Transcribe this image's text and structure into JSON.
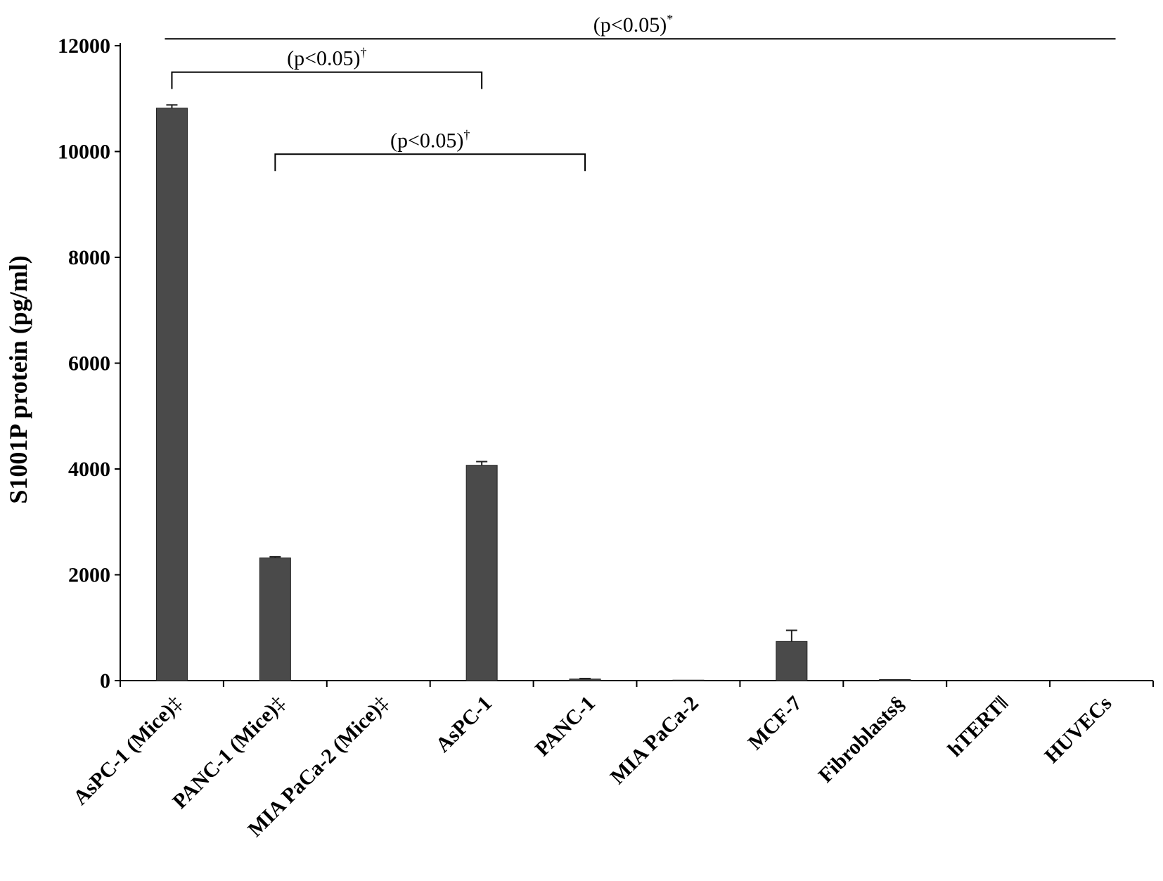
{
  "chart_data": {
    "type": "bar",
    "ylabel": "S1001P protein (pg/ml)",
    "xlabel": "",
    "ylim": [
      0,
      12000
    ],
    "yticks": [
      0,
      2000,
      4000,
      6000,
      8000,
      10000,
      12000
    ],
    "ytick_labels": [
      "0",
      "2000",
      "4000",
      "6000",
      "8000",
      "10000",
      "12000"
    ],
    "categories": [
      {
        "name": "AsPC-1 (Mice)",
        "mark": "‡"
      },
      {
        "name": "PANC-1 (Mice)",
        "mark": "‡"
      },
      {
        "name": "MIA PaCa-2 (Mice)",
        "mark": "‡"
      },
      {
        "name": "AsPC-1",
        "mark": ""
      },
      {
        "name": "PANC-1",
        "mark": ""
      },
      {
        "name": "MIA PaCa-2",
        "mark": ""
      },
      {
        "name": "MCF-7",
        "mark": ""
      },
      {
        "name": "Fibroblasts§",
        "mark": ""
      },
      {
        "name": "hTERT‖",
        "mark": ""
      },
      {
        "name": "HUVECs",
        "mark": ""
      }
    ],
    "values": [
      10820,
      2320,
      0,
      4070,
      30,
      10,
      740,
      20,
      5,
      5
    ],
    "errors": [
      60,
      20,
      0,
      70,
      10,
      0,
      210,
      0,
      0,
      0
    ],
    "bar_color": "#4a4a4a",
    "significance": [
      {
        "text": "(p<0.05)",
        "sup": "*",
        "from": 0,
        "to": 9,
        "y": 12130,
        "style": "line"
      },
      {
        "text": "(p<0.05)",
        "sup": "†",
        "from": 0,
        "to": 3,
        "y": 11500,
        "style": "bracket"
      },
      {
        "text": "(p<0.05)",
        "sup": "†",
        "from": 1,
        "to": 4,
        "y": 9950,
        "style": "bracket"
      }
    ],
    "grid": false,
    "legend": "none"
  }
}
